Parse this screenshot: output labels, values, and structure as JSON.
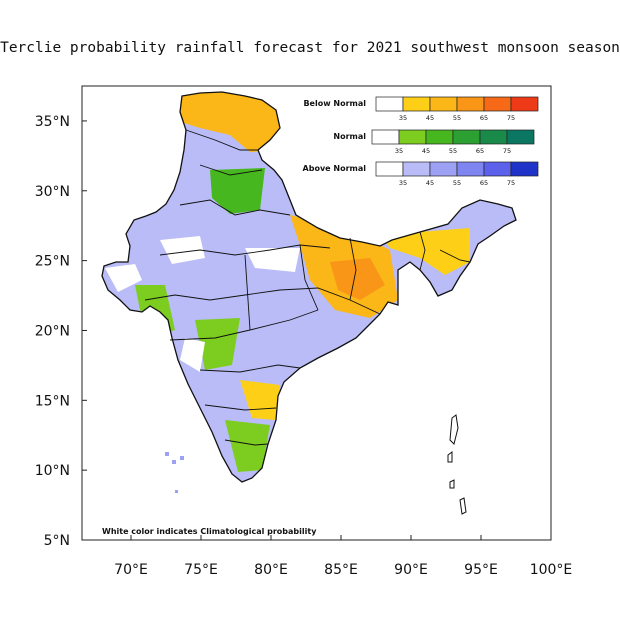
{
  "title": "Terclie probability rainfall forecast for 2021 southwest monsoon  season",
  "note": "White color indicates Climatological probability",
  "axes": {
    "lon_ticks": [
      "70°E",
      "75°E",
      "80°E",
      "85°E",
      "90°E",
      "95°E",
      "100°E"
    ],
    "lat_ticks": [
      "35°N",
      "30°N",
      "25°N",
      "20°N",
      "15°N",
      "10°N",
      "5°N"
    ],
    "lon_values": [
      70,
      75,
      80,
      85,
      90,
      95,
      100
    ],
    "lat_values": [
      35,
      30,
      25,
      20,
      15,
      10,
      5
    ],
    "lon_range": [
      66.5,
      100
    ],
    "lat_range": [
      5,
      37.5
    ]
  },
  "legend": [
    {
      "label": "Below Normal",
      "ticks": [
        "35",
        "45",
        "55",
        "65",
        "75"
      ],
      "colors": [
        "#ffffff",
        "#fdd017",
        "#fbb617",
        "#f99517",
        "#f66a17",
        "#ee3a17"
      ]
    },
    {
      "label": "Normal",
      "ticks": [
        "35",
        "45",
        "55",
        "65",
        "75"
      ],
      "colors": [
        "#ffffff",
        "#7ccd1f",
        "#47b71f",
        "#2ca032",
        "#1a8a4a",
        "#0b7762"
      ]
    },
    {
      "label": "Above Normal",
      "ticks": [
        "35",
        "45",
        "55",
        "65",
        "75"
      ],
      "colors": [
        "#ffffff",
        "#b9bcf6",
        "#9da1f4",
        "#7e84f0",
        "#5b61ea",
        "#1f33c9"
      ]
    }
  ]
}
